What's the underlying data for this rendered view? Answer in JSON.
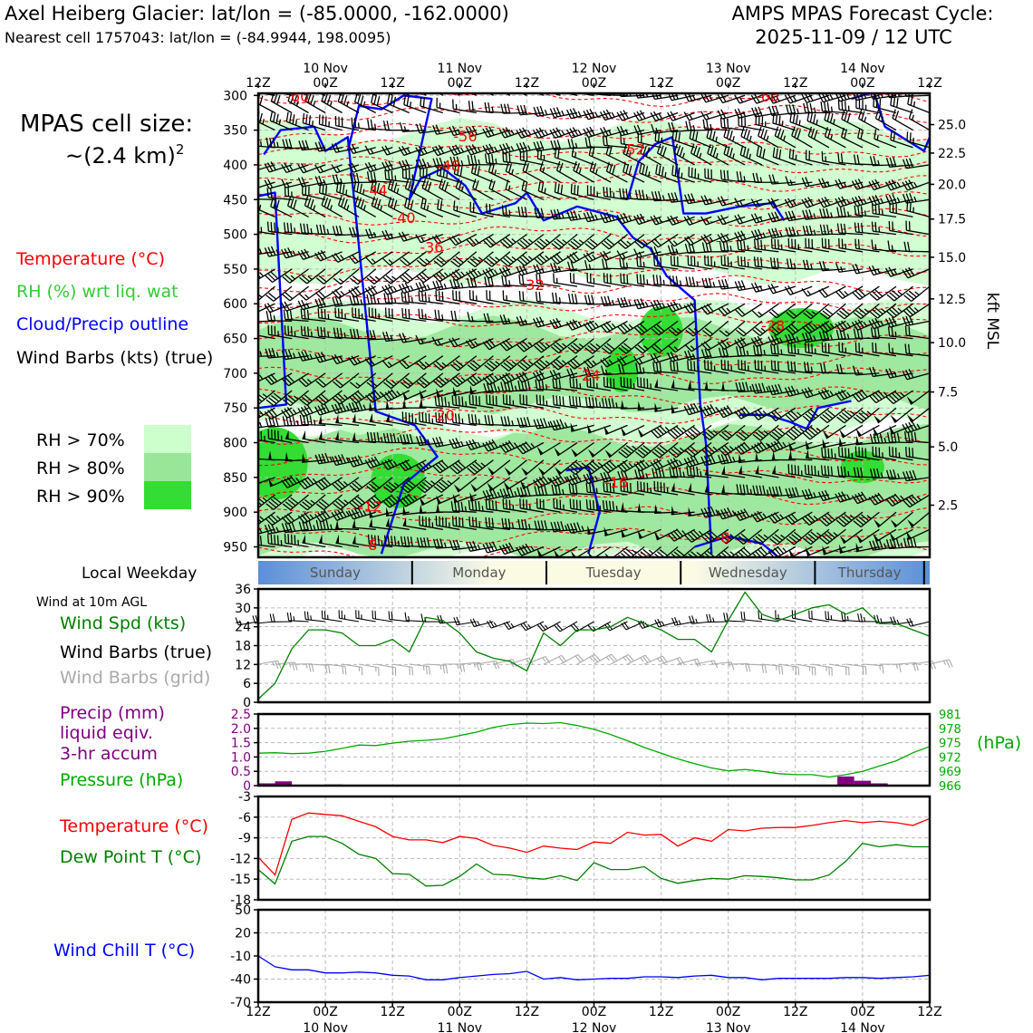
{
  "header": {
    "title_left": "Axel Heiberg Glacier: lat/lon = (-85.0000, -162.0000)",
    "subtitle_left": "Nearest cell 1757043: lat/lon = (-84.9944, 198.0095)",
    "title_right_1": "AMPS MPAS Forecast Cycle:",
    "title_right_2": "2025-11-09 / 12 UTC"
  },
  "colors": {
    "temperature": "#ff0000",
    "rh": "#33cc33",
    "cloud": "#0000ff",
    "wind": "#000000",
    "wind_grid": "#aaaaaa",
    "precip": "#800080",
    "pressure": "#00aa00",
    "dewpoint": "#008000",
    "windchill": "#0000ff",
    "rh70": "#ccffcc",
    "rh80": "#99e699",
    "rh90": "#33dd33"
  },
  "side": {
    "cell_size_1": "MPAS cell size:",
    "cell_size_2": "~(2.4 km)",
    "cell_size_sup": "2",
    "legend_temp": "Temperature (°C)",
    "legend_rh": "RH (%) wrt liq. wat",
    "legend_cloud": "Cloud/Precip outline",
    "legend_wind": "Wind Barbs (kts) (true)",
    "rh_levels": [
      "RH > 70%",
      "RH > 80%",
      "RH > 90%"
    ],
    "local_weekday": "Local Weekday",
    "wind10m": "Wind at 10m AGL",
    "wind_spd": "Wind Spd (kts)",
    "wind_barbs_true": "Wind Barbs (true)",
    "wind_barbs_grid": "Wind Barbs (grid)",
    "precip_1": "Precip (mm)",
    "precip_2": "liquid eqiv.",
    "precip_3": "3-hr accum",
    "pressure": "Pressure (hPa)",
    "temperature": "Temperature (°C)",
    "dewpoint": "Dew Point T (°C)",
    "windchill": "Wind Chill T (°C)"
  },
  "time_axis": {
    "ticks": [
      "12Z",
      "00Z",
      "12Z",
      "00Z",
      "12Z",
      "00Z",
      "12Z",
      "00Z",
      "12Z",
      "00Z",
      "12Z"
    ],
    "date_labels": [
      "10 Nov",
      "11 Nov",
      "12 Nov",
      "13 Nov",
      "14 Nov"
    ],
    "weekdays": [
      "Sunday",
      "Monday",
      "Tuesday",
      "Wednesday",
      "Thursday"
    ]
  },
  "chart_data": [
    {
      "type": "line",
      "panel": "upper-air cross section",
      "yticks": [
        "300",
        "350",
        "400",
        "450",
        "500",
        "550",
        "600",
        "650",
        "700",
        "750",
        "800",
        "850",
        "900",
        "950"
      ],
      "ylim": [
        297,
        965
      ],
      "right_ticks": [
        {
          "label": "25.0",
          "p": 342
        },
        {
          "label": "22.5",
          "p": 383
        },
        {
          "label": "20.0",
          "p": 428
        },
        {
          "label": "17.5",
          "p": 478
        },
        {
          "label": "15.0",
          "p": 533
        },
        {
          "label": "12.5",
          "p": 593
        },
        {
          "label": "10.0",
          "p": 656
        },
        {
          "label": "7.5",
          "p": 727
        },
        {
          "label": "5.0",
          "p": 806
        },
        {
          "label": "2.5",
          "p": 890
        }
      ],
      "right_axis_label": "kft MSL",
      "isotherm_labels": [
        {
          "text": "-60",
          "t": 7,
          "p": 301
        },
        {
          "text": "-56",
          "t": 37,
          "p": 358
        },
        {
          "text": "-52",
          "t": 67,
          "p": 377
        },
        {
          "text": "-48",
          "t": 34,
          "p": 401
        },
        {
          "text": "-44",
          "t": 21,
          "p": 436
        },
        {
          "text": "-40",
          "t": 26,
          "p": 476
        },
        {
          "text": "-36",
          "t": 31,
          "p": 518
        },
        {
          "text": "-32",
          "t": 49,
          "p": 572
        },
        {
          "text": "-28",
          "t": 92,
          "p": 631
        },
        {
          "text": "-24",
          "t": 59,
          "p": 703
        },
        {
          "text": "-20",
          "t": 33,
          "p": 760
        },
        {
          "text": "-16",
          "t": 64,
          "p": 857
        },
        {
          "text": "-12",
          "t": 20,
          "p": 891
        },
        {
          "text": "-8",
          "t": 20,
          "p": 947
        },
        {
          "text": "-8",
          "t": 83,
          "p": 936
        },
        {
          "text": "-60",
          "t": 91,
          "p": 301
        }
      ]
    },
    {
      "type": "line",
      "panel": "wind",
      "ylim": [
        0,
        36
      ],
      "yticks": [
        "0",
        "6",
        "12",
        "18",
        "24",
        "30",
        "36"
      ],
      "series": [
        {
          "name": "Wind Spd (kts)",
          "x": [
            0,
            3,
            6,
            9,
            12,
            15,
            18,
            21,
            24,
            27,
            30,
            33,
            36,
            39,
            42,
            45,
            48,
            51,
            54,
            57,
            60,
            63,
            66,
            69,
            72,
            75,
            78,
            81,
            84,
            87,
            90,
            93,
            96,
            99,
            102,
            105,
            108,
            111,
            114,
            117,
            120
          ],
          "values": [
            1,
            6,
            17,
            23,
            23,
            22,
            18,
            18,
            20,
            16,
            27,
            26,
            22,
            16,
            14,
            13,
            10,
            22,
            18,
            23,
            23,
            24,
            27,
            25,
            23,
            20,
            20,
            16,
            26,
            35,
            28,
            26,
            28,
            30,
            31,
            28,
            30,
            25,
            25,
            23,
            21
          ]
        }
      ]
    },
    {
      "type": "line",
      "panel": "precipitation and pressure",
      "ylim": [
        0,
        2.5
      ],
      "yticks": [
        "0",
        "0.5",
        "1.0",
        "1.5",
        "2.0",
        "2.5"
      ],
      "right_ylim": [
        966,
        981
      ],
      "right_yticks": [
        "966",
        "969",
        "972",
        "975",
        "978",
        "981"
      ],
      "right_ylabel": "(hPa)",
      "series": [
        {
          "name": "Pressure (hPa)",
          "x": [
            0,
            3,
            6,
            9,
            12,
            15,
            18,
            21,
            24,
            27,
            30,
            33,
            36,
            39,
            42,
            45,
            48,
            51,
            54,
            57,
            60,
            63,
            66,
            69,
            72,
            75,
            78,
            81,
            84,
            87,
            90,
            93,
            96,
            99,
            102,
            105,
            108,
            111,
            114,
            117,
            120
          ],
          "values": [
            972.8,
            972.9,
            972.7,
            972.8,
            973.2,
            973.8,
            974.5,
            974.4,
            974.9,
            975.3,
            975.5,
            975.8,
            976.5,
            977.2,
            978.2,
            978.8,
            979.1,
            979.0,
            979.2,
            978.6,
            977.8,
            976.7,
            975.4,
            974.0,
            972.8,
            971.6,
            970.6,
            969.7,
            969.1,
            969.4,
            969.0,
            968.5,
            968.3,
            968.3,
            967.8,
            968.3,
            969.0,
            970.1,
            971.2,
            972.9,
            974.2
          ]
        },
        {
          "name": "Precip (mm)",
          "type": "bar",
          "x": [
            1.5,
            4.5,
            13.5,
            105,
            108,
            111
          ],
          "values": [
            0.08,
            0.15,
            0.04,
            0.32,
            0.17,
            0.08
          ]
        }
      ]
    },
    {
      "type": "line",
      "panel": "temperature and dew point",
      "ylim": [
        -18,
        -3
      ],
      "yticks": [
        "-18",
        "-15",
        "-12",
        "-9",
        "-6",
        "-3"
      ],
      "series": [
        {
          "name": "Temperature (°C)",
          "x": [
            0,
            3,
            6,
            9,
            12,
            15,
            18,
            21,
            24,
            27,
            30,
            33,
            36,
            39,
            42,
            45,
            48,
            51,
            54,
            57,
            60,
            63,
            66,
            69,
            72,
            75,
            78,
            81,
            84,
            87,
            90,
            93,
            96,
            99,
            102,
            105,
            108,
            111,
            114,
            117,
            120
          ],
          "values": [
            -11.8,
            -14.4,
            -6.3,
            -5.4,
            -5.6,
            -5.8,
            -6.6,
            -7.4,
            -8.8,
            -9.3,
            -9.3,
            -9.7,
            -8.8,
            -9.1,
            -10.1,
            -10.5,
            -11.1,
            -10.2,
            -10.5,
            -10.7,
            -9.6,
            -9.8,
            -8.2,
            -8.6,
            -8.5,
            -10.2,
            -9.0,
            -9.5,
            -7.8,
            -8.0,
            -7.6,
            -7.5,
            -7.5,
            -7.2,
            -6.8,
            -6.5,
            -6.8,
            -6.6,
            -6.8,
            -7.2,
            -6.2
          ]
        },
        {
          "name": "Dew Point T (°C)",
          "x": [
            0,
            3,
            6,
            9,
            12,
            15,
            18,
            21,
            24,
            27,
            30,
            33,
            36,
            39,
            42,
            45,
            48,
            51,
            54,
            57,
            60,
            63,
            66,
            69,
            72,
            75,
            78,
            81,
            84,
            87,
            90,
            93,
            96,
            99,
            102,
            105,
            108,
            111,
            114,
            117,
            120
          ],
          "values": [
            -13.6,
            -15.7,
            -9.5,
            -8.8,
            -8.8,
            -9.8,
            -11.4,
            -12.0,
            -14.2,
            -14.3,
            -16.0,
            -15.9,
            -14.6,
            -12.8,
            -14.3,
            -14.4,
            -14.8,
            -15.0,
            -14.5,
            -15.2,
            -12.6,
            -13.6,
            -13.6,
            -13.2,
            -14.9,
            -15.6,
            -15.2,
            -14.9,
            -15.0,
            -14.5,
            -14.6,
            -14.8,
            -15.1,
            -15.1,
            -14.4,
            -12.4,
            -9.8,
            -10.3,
            -10.0,
            -10.3,
            -10.3
          ]
        }
      ]
    },
    {
      "type": "line",
      "panel": "wind chill",
      "ylim": [
        -70,
        50
      ],
      "yticks": [
        "-70",
        "-40",
        "-10",
        "20",
        "50"
      ],
      "series": [
        {
          "name": "Wind Chill T (°C)",
          "x": [
            0,
            3,
            6,
            9,
            12,
            15,
            18,
            21,
            24,
            27,
            30,
            33,
            36,
            39,
            42,
            45,
            48,
            51,
            54,
            57,
            60,
            63,
            66,
            69,
            72,
            75,
            78,
            81,
            84,
            87,
            90,
            93,
            96,
            99,
            102,
            105,
            108,
            111,
            114,
            117,
            120
          ],
          "values": [
            -10,
            -24,
            -28,
            -28,
            -32,
            -32,
            -31,
            -32,
            -35,
            -36,
            -41,
            -41,
            -38,
            -36,
            -34,
            -33,
            -30,
            -40,
            -38,
            -41,
            -40,
            -39,
            -39,
            -37,
            -37,
            -38,
            -36,
            -35,
            -38,
            -38,
            -41,
            -39,
            -39,
            -39,
            -39,
            -38,
            -38,
            -39,
            -38,
            -37,
            -35
          ]
        }
      ]
    }
  ]
}
